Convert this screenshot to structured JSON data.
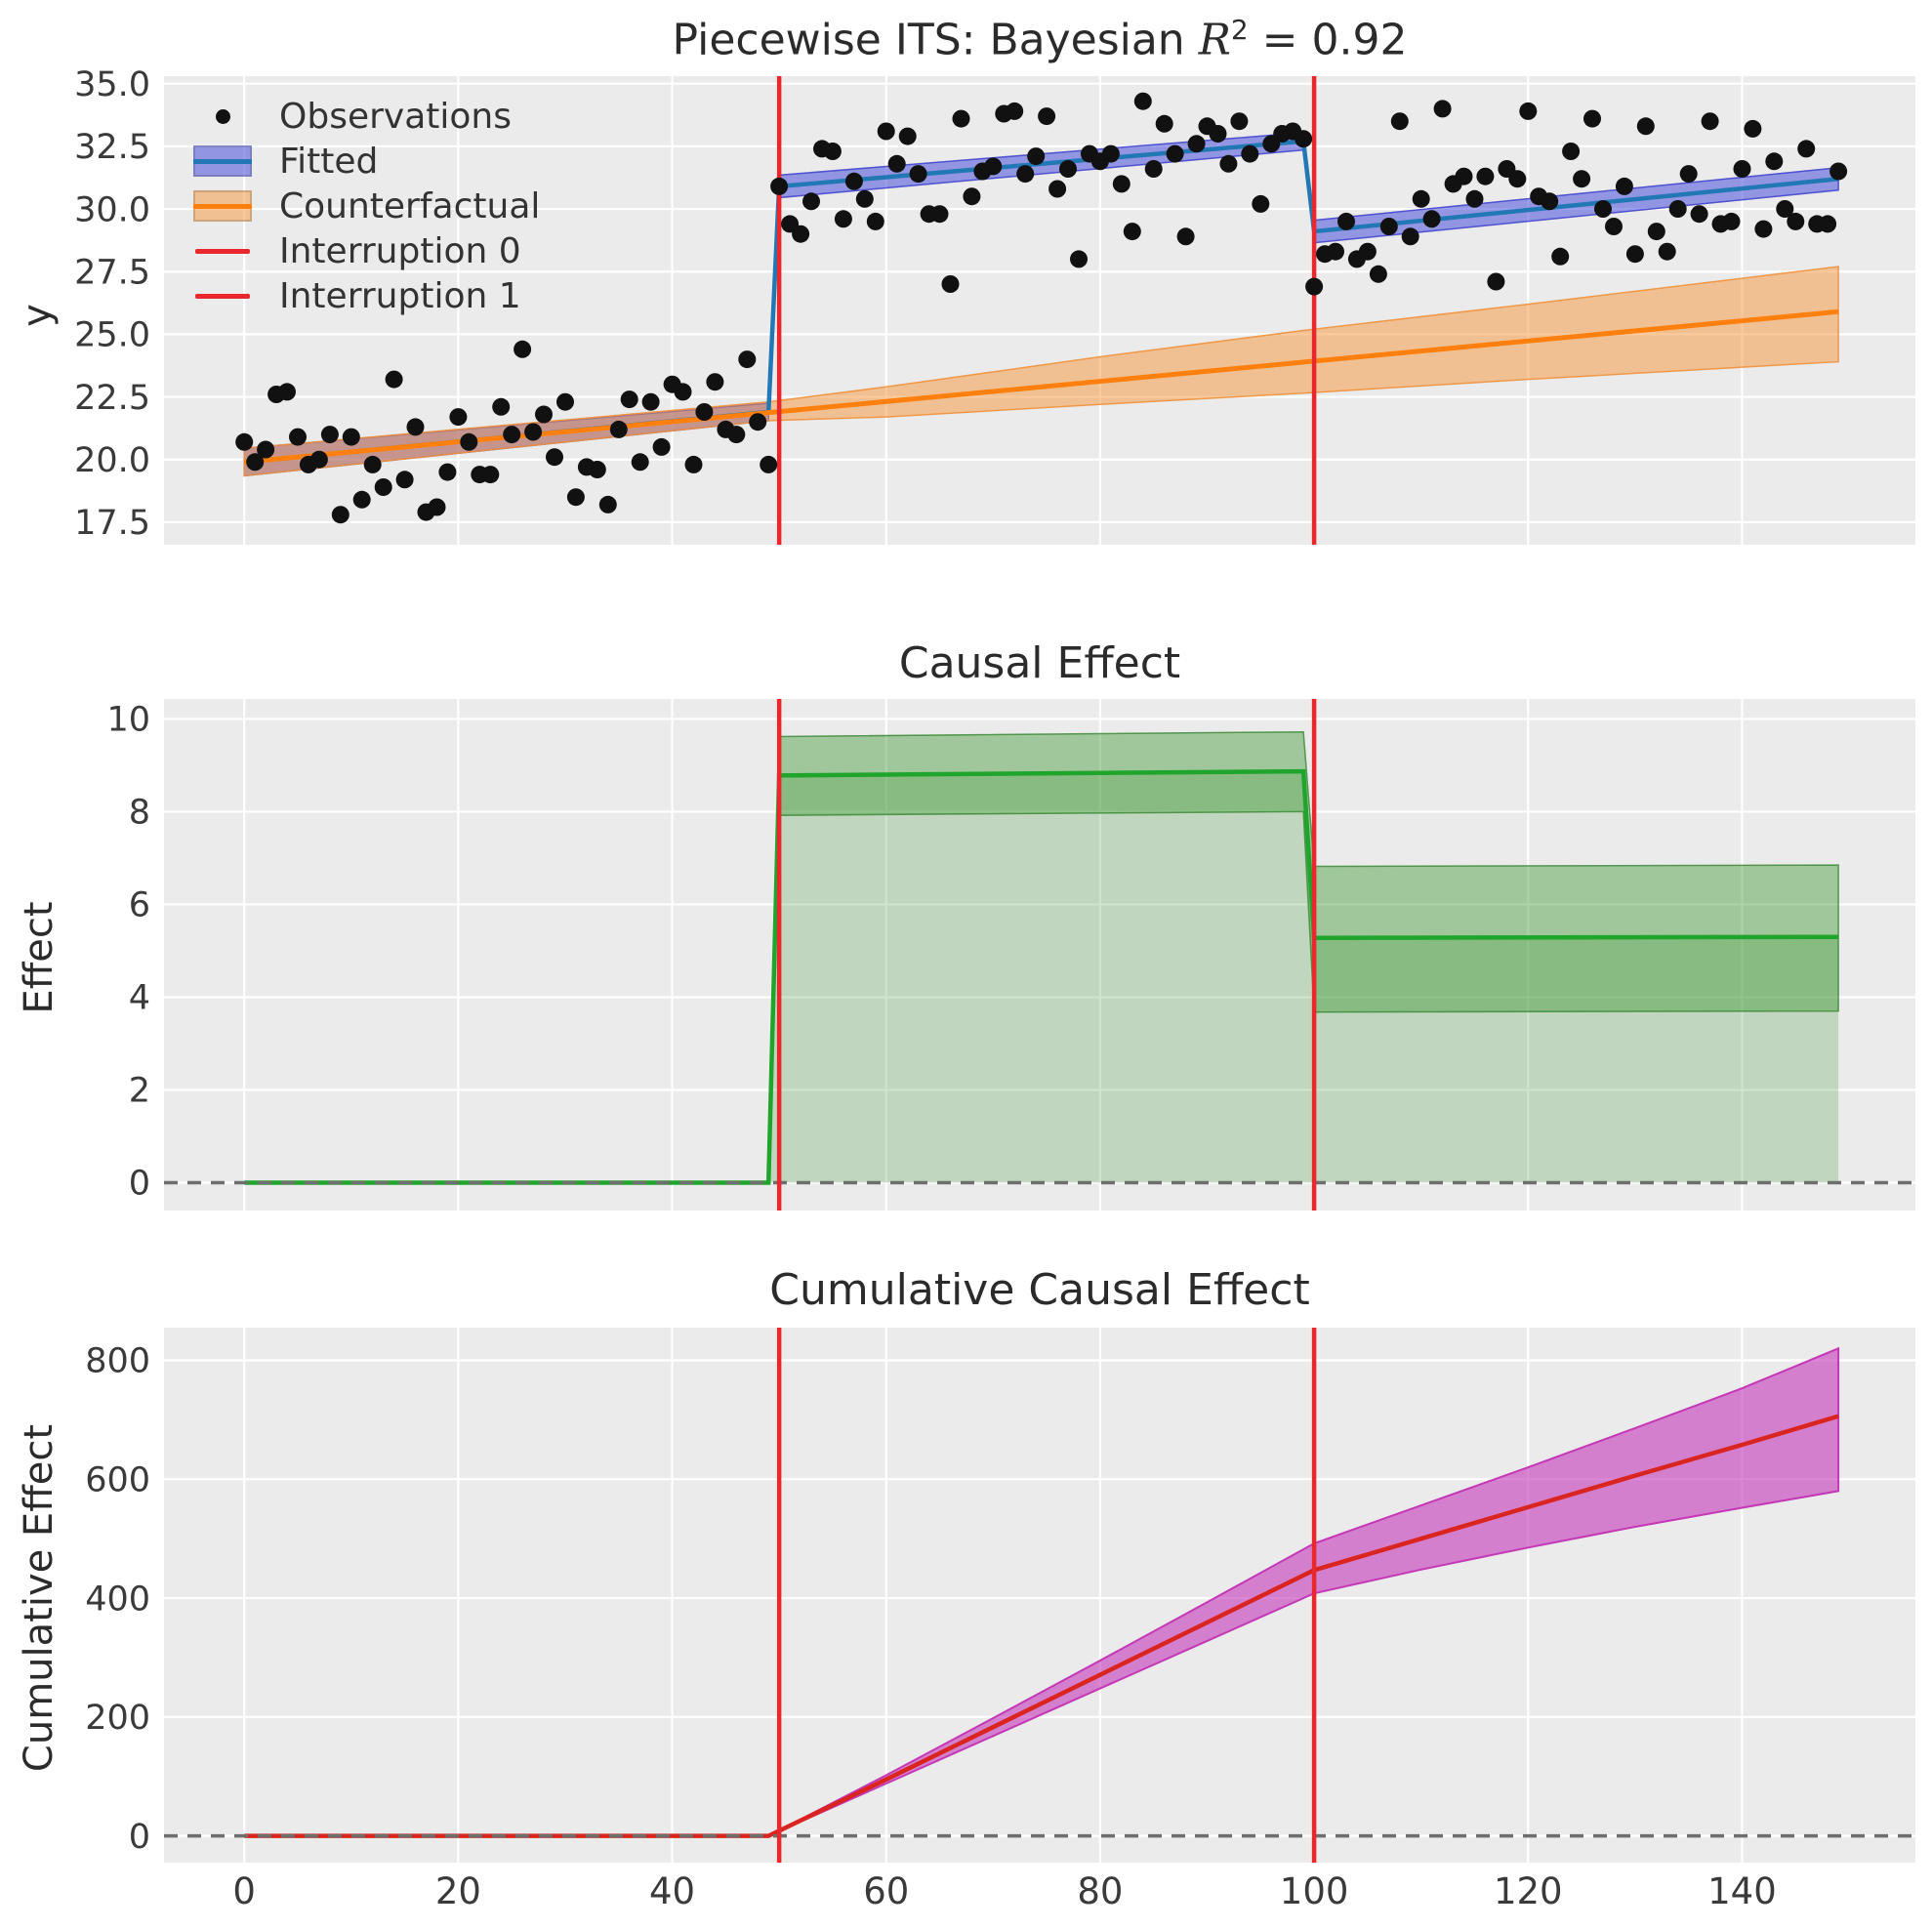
{
  "titles": {
    "top_prefix": "Piecewise ITS: Bayesian ",
    "top_r": "R",
    "top_exp": "2",
    "top_suffix": " = 0.92",
    "middle": "Causal Effect",
    "bottom": "Cumulative Causal Effect"
  },
  "axis_labels": {
    "top_y": "y",
    "middle_y": "Effect",
    "bottom_y": "Cumulative Effect"
  },
  "legend": {
    "items": [
      {
        "label": "Observations",
        "type": "dot",
        "color": "#111111"
      },
      {
        "label": "Fitted",
        "type": "band-line",
        "band": "rgba(73,78,216,0.55)",
        "line": "#2278b5"
      },
      {
        "label": "Counterfactual",
        "type": "band-line",
        "band": "rgba(248,150,58,0.5)",
        "line": "#ff800e"
      },
      {
        "label": "Interruption 0",
        "type": "line",
        "color": "#e8282c"
      },
      {
        "label": "Interruption 1",
        "type": "line",
        "color": "#e8282c"
      }
    ]
  },
  "colors": {
    "axes_bg": "#EBEBEB",
    "grid": "#ffffff",
    "tick_text": "#3a3a3a",
    "obs": "#111111",
    "fitted_line": "#2278b5",
    "fitted_band": "rgba(73,78,216,0.55)",
    "fitted_band_edge": "rgba(60,64,205,0.85)",
    "cf_line": "#ff800e",
    "cf_band": "rgba(248,150,58,0.5)",
    "cf_band_edge": "rgba(240,145,60,0.9)",
    "interruption": "#e8282c",
    "effect_line": "#1fa42c",
    "effect_band": "rgba(58,150,48,0.42)",
    "effect_band_edge": "rgba(45,130,40,0.75)",
    "effect_fill": "rgba(95,165,85,0.30)",
    "cum_line": "#d9241f",
    "cum_band": "rgba(197,55,186,0.60)",
    "cum_band_edge": "#c437b5",
    "zero_dash": "#6e6e6e"
  },
  "chart_data": {
    "type": "line",
    "bayesian_r2": 0.92,
    "interruptions": [
      50,
      100
    ],
    "x": {
      "lim": [
        -7.5,
        156.2
      ],
      "ticks": [
        0,
        20,
        40,
        60,
        80,
        100,
        120,
        140
      ],
      "tick_labels": [
        "0",
        "20",
        "40",
        "60",
        "80",
        "100",
        "120",
        "140"
      ]
    },
    "plots": [
      {
        "name": "piecewise-its",
        "title": "Piecewise ITS: Bayesian R^2 = 0.92",
        "ylabel": "y",
        "ylim": [
          16.6,
          35.3
        ],
        "yticks": [
          17.5,
          20.0,
          22.5,
          25.0,
          27.5,
          30.0,
          32.5,
          35.0
        ],
        "ytick_labels": [
          "17.5",
          "20.0",
          "22.5",
          "25.0",
          "27.5",
          "30.0",
          "32.5",
          "35.0"
        ],
        "fitted": {
          "mean": [
            [
              0,
              19.9
            ],
            [
              49,
              21.9
            ],
            [
              50,
              30.9
            ],
            [
              99,
              32.7
            ],
            [
              100,
              29.1
            ],
            [
              149,
              31.2
            ]
          ],
          "bands": [
            {
              "hi": [
                [
                  0,
                  20.45
                ],
                [
                  49,
                  22.25
                ]
              ],
              "lo": [
                [
                  0,
                  19.35
                ],
                [
                  49,
                  21.55
                ]
              ]
            },
            {
              "hi": [
                [
                  50,
                  31.35
                ],
                [
                  99,
                  33.05
                ]
              ],
              "lo": [
                [
                  50,
                  30.45
                ],
                [
                  99,
                  32.35
                ]
              ]
            },
            {
              "hi": [
                [
                  100,
                  29.55
                ],
                [
                  149,
                  31.65
                ]
              ],
              "lo": [
                [
                  100,
                  28.65
                ],
                [
                  149,
                  30.75
                ]
              ]
            }
          ]
        },
        "counterfactual": {
          "mean": [
            [
              0,
              19.9
            ],
            [
              149,
              25.9
            ]
          ],
          "hi": [
            [
              0,
              20.45
            ],
            [
              49,
              22.3
            ],
            [
              60,
              22.9
            ],
            [
              80,
              24.1
            ],
            [
              99,
              25.15
            ],
            [
              120,
              26.2
            ],
            [
              149,
              27.7
            ]
          ],
          "lo": [
            [
              0,
              19.35
            ],
            [
              49,
              21.55
            ],
            [
              60,
              21.7
            ],
            [
              80,
              22.2
            ],
            [
              99,
              22.65
            ],
            [
              120,
              23.2
            ],
            [
              149,
              23.9
            ]
          ]
        },
        "observations": [
          [
            0,
            20.7
          ],
          [
            1,
            19.9
          ],
          [
            2,
            20.4
          ],
          [
            3,
            22.6
          ],
          [
            4,
            22.7
          ],
          [
            5,
            20.9
          ],
          [
            6,
            19.8
          ],
          [
            7,
            20.0
          ],
          [
            8,
            21.0
          ],
          [
            9,
            17.8
          ],
          [
            10,
            20.9
          ],
          [
            11,
            18.4
          ],
          [
            12,
            19.8
          ],
          [
            13,
            18.9
          ],
          [
            14,
            23.2
          ],
          [
            15,
            19.2
          ],
          [
            16,
            21.3
          ],
          [
            17,
            17.9
          ],
          [
            18,
            18.1
          ],
          [
            19,
            19.5
          ],
          [
            20,
            21.7
          ],
          [
            21,
            20.7
          ],
          [
            22,
            19.4
          ],
          [
            23,
            19.4
          ],
          [
            24,
            22.1
          ],
          [
            25,
            21.0
          ],
          [
            26,
            24.4
          ],
          [
            27,
            21.1
          ],
          [
            28,
            21.8
          ],
          [
            29,
            20.1
          ],
          [
            30,
            22.3
          ],
          [
            31,
            18.5
          ],
          [
            32,
            19.7
          ],
          [
            33,
            19.6
          ],
          [
            34,
            18.2
          ],
          [
            35,
            21.2
          ],
          [
            36,
            22.4
          ],
          [
            37,
            19.9
          ],
          [
            38,
            22.3
          ],
          [
            39,
            20.5
          ],
          [
            40,
            23.0
          ],
          [
            41,
            22.7
          ],
          [
            42,
            19.8
          ],
          [
            43,
            21.9
          ],
          [
            44,
            23.1
          ],
          [
            45,
            21.2
          ],
          [
            46,
            21.0
          ],
          [
            47,
            24.0
          ],
          [
            48,
            21.5
          ],
          [
            49,
            19.8
          ],
          [
            50,
            30.9
          ],
          [
            51,
            29.4
          ],
          [
            52,
            29.0
          ],
          [
            53,
            30.3
          ],
          [
            54,
            32.4
          ],
          [
            55,
            32.3
          ],
          [
            56,
            29.6
          ],
          [
            57,
            31.1
          ],
          [
            58,
            30.4
          ],
          [
            59,
            29.5
          ],
          [
            60,
            33.1
          ],
          [
            61,
            31.8
          ],
          [
            62,
            32.9
          ],
          [
            63,
            31.4
          ],
          [
            64,
            29.8
          ],
          [
            65,
            29.8
          ],
          [
            66,
            27.0
          ],
          [
            67,
            33.6
          ],
          [
            68,
            30.5
          ],
          [
            69,
            31.5
          ],
          [
            70,
            31.7
          ],
          [
            71,
            33.8
          ],
          [
            72,
            33.9
          ],
          [
            73,
            31.4
          ],
          [
            74,
            32.1
          ],
          [
            75,
            33.7
          ],
          [
            76,
            30.8
          ],
          [
            77,
            31.6
          ],
          [
            78,
            28.0
          ],
          [
            79,
            32.2
          ],
          [
            80,
            31.9
          ],
          [
            81,
            32.2
          ],
          [
            82,
            31.0
          ],
          [
            83,
            29.1
          ],
          [
            84,
            34.3
          ],
          [
            85,
            31.6
          ],
          [
            86,
            33.4
          ],
          [
            87,
            32.2
          ],
          [
            88,
            28.9
          ],
          [
            89,
            32.6
          ],
          [
            90,
            33.3
          ],
          [
            91,
            33.0
          ],
          [
            92,
            31.8
          ],
          [
            93,
            33.5
          ],
          [
            94,
            32.2
          ],
          [
            95,
            30.2
          ],
          [
            96,
            32.6
          ],
          [
            97,
            33.0
          ],
          [
            98,
            33.1
          ],
          [
            99,
            32.8
          ],
          [
            100,
            26.9
          ],
          [
            101,
            28.2
          ],
          [
            102,
            28.3
          ],
          [
            103,
            29.5
          ],
          [
            104,
            28.0
          ],
          [
            105,
            28.3
          ],
          [
            106,
            27.4
          ],
          [
            107,
            29.3
          ],
          [
            108,
            33.5
          ],
          [
            109,
            28.9
          ],
          [
            110,
            30.4
          ],
          [
            111,
            29.6
          ],
          [
            112,
            34.0
          ],
          [
            113,
            31.0
          ],
          [
            114,
            31.3
          ],
          [
            115,
            30.4
          ],
          [
            116,
            31.3
          ],
          [
            117,
            27.1
          ],
          [
            118,
            31.6
          ],
          [
            119,
            31.2
          ],
          [
            120,
            33.9
          ],
          [
            121,
            30.5
          ],
          [
            122,
            30.3
          ],
          [
            123,
            28.1
          ],
          [
            124,
            32.3
          ],
          [
            125,
            31.2
          ],
          [
            126,
            33.6
          ],
          [
            127,
            30.0
          ],
          [
            128,
            29.3
          ],
          [
            129,
            30.9
          ],
          [
            130,
            28.2
          ],
          [
            131,
            33.3
          ],
          [
            132,
            29.1
          ],
          [
            133,
            28.3
          ],
          [
            134,
            30.0
          ],
          [
            135,
            31.4
          ],
          [
            136,
            29.8
          ],
          [
            137,
            33.5
          ],
          [
            138,
            29.4
          ],
          [
            139,
            29.5
          ],
          [
            140,
            31.6
          ],
          [
            141,
            33.2
          ],
          [
            142,
            29.2
          ],
          [
            143,
            31.9
          ],
          [
            144,
            30.0
          ],
          [
            145,
            29.5
          ],
          [
            146,
            32.4
          ],
          [
            147,
            29.4
          ],
          [
            148,
            29.4
          ],
          [
            149,
            31.5
          ]
        ]
      },
      {
        "name": "causal-effect",
        "title": "Causal Effect",
        "ylabel": "Effect",
        "ylim": [
          -0.6,
          10.43
        ],
        "yticks": [
          0,
          2,
          4,
          6,
          8,
          10
        ],
        "ytick_labels": [
          "0",
          "2",
          "4",
          "6",
          "8",
          "10"
        ],
        "mean": [
          [
            0,
            0
          ],
          [
            49,
            0
          ],
          [
            50,
            8.78
          ],
          [
            99,
            8.87
          ],
          [
            100,
            5.28
          ],
          [
            149,
            5.3
          ]
        ],
        "hi": [
          [
            0,
            0
          ],
          [
            49,
            0
          ],
          [
            50,
            9.62
          ],
          [
            99,
            9.72
          ],
          [
            100,
            6.82
          ],
          [
            149,
            6.85
          ]
        ],
        "lo": [
          [
            0,
            0
          ],
          [
            49,
            0
          ],
          [
            50,
            7.92
          ],
          [
            99,
            8.0
          ],
          [
            100,
            3.68
          ],
          [
            149,
            3.7
          ]
        ],
        "zero_line": 0
      },
      {
        "name": "cumulative-causal-effect",
        "title": "Cumulative Causal Effect",
        "ylabel": "Cumulative Effect",
        "ylim": [
          -45,
          855
        ],
        "yticks": [
          0,
          200,
          400,
          600,
          800
        ],
        "ytick_labels": [
          "0",
          "200",
          "400",
          "600",
          "800"
        ],
        "mean": [
          [
            0,
            0
          ],
          [
            49,
            0
          ],
          [
            60,
            95
          ],
          [
            70,
            183
          ],
          [
            80,
            271
          ],
          [
            90,
            359
          ],
          [
            100,
            447
          ],
          [
            110,
            500
          ],
          [
            120,
            553
          ],
          [
            130,
            606
          ],
          [
            140,
            658
          ],
          [
            149,
            706
          ]
        ],
        "hi": [
          [
            0,
            0
          ],
          [
            49,
            0
          ],
          [
            60,
            102
          ],
          [
            70,
            198
          ],
          [
            80,
            295
          ],
          [
            90,
            393
          ],
          [
            100,
            492
          ],
          [
            110,
            556
          ],
          [
            120,
            620
          ],
          [
            130,
            686
          ],
          [
            140,
            753
          ],
          [
            149,
            820
          ]
        ],
        "lo": [
          [
            0,
            0
          ],
          [
            49,
            0
          ],
          [
            60,
            88
          ],
          [
            70,
            168
          ],
          [
            80,
            248
          ],
          [
            90,
            328
          ],
          [
            100,
            408
          ],
          [
            110,
            448
          ],
          [
            120,
            485
          ],
          [
            130,
            520
          ],
          [
            140,
            552
          ],
          [
            149,
            580
          ]
        ],
        "zero_line": 0
      }
    ]
  }
}
